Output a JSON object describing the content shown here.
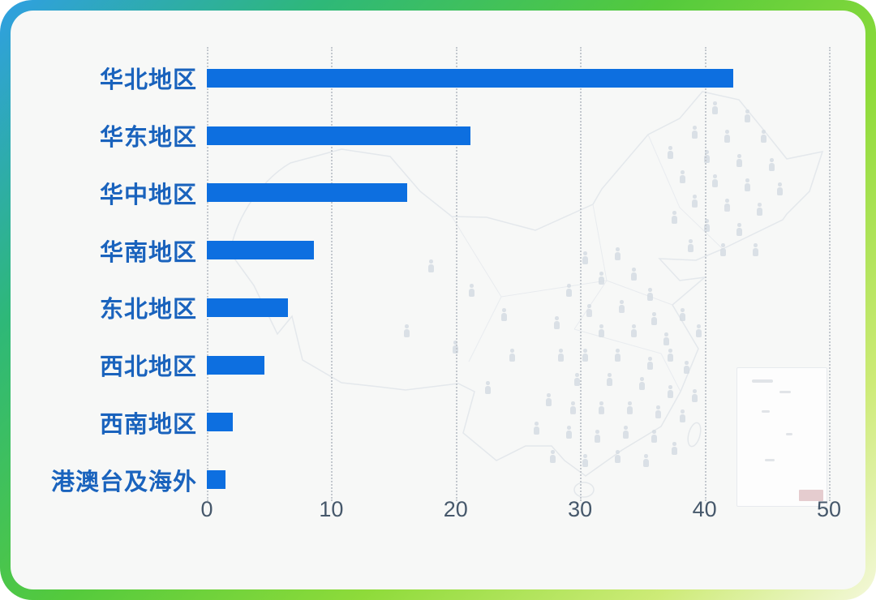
{
  "chart_data": {
    "type": "bar",
    "orientation": "horizontal",
    "categories": [
      "华北地区",
      "华东地区",
      "华中地区",
      "华南地区",
      "东北地区",
      "西北地区",
      "西南地区",
      "港澳台及海外"
    ],
    "values": [
      42.3,
      21.2,
      16.1,
      8.6,
      6.5,
      4.6,
      2.1,
      1.5
    ],
    "title": "",
    "xlabel": "",
    "ylabel": "",
    "xlim": [
      0,
      50
    ],
    "x_ticks": [
      0,
      10,
      20,
      30,
      40,
      50
    ],
    "x_tick_labels": [
      "0",
      "10",
      "20",
      "30",
      "40",
      "50"
    ],
    "grid": "vertical-dotted",
    "legend": "none",
    "bar_color": "#0d6fe0",
    "category_label_color": "#1a63bd",
    "tick_label_color": "#46586b"
  },
  "background": {
    "map_icon": "china-map",
    "scatter_icon": "person-icon",
    "inset_icon": "south-china-sea-inset",
    "watermark_color": "#e0c3c7"
  },
  "frame": {
    "border_gradient": [
      "#2f9fe3",
      "#2eb878",
      "#54ca3c",
      "#8edb3a",
      "#f4f8da"
    ],
    "panel_background": "#f7f8f7"
  }
}
